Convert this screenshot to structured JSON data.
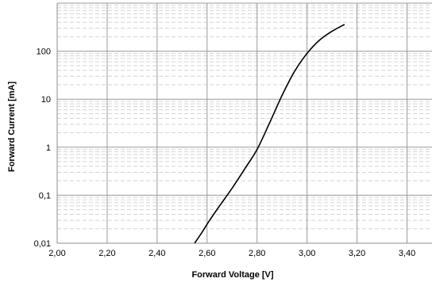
{
  "chart_data": {
    "type": "line",
    "title": "",
    "xlabel": "Forward Voltage [V]",
    "ylabel": "Forward Current [mA]",
    "x_scale": "linear",
    "y_scale": "log",
    "xlim": [
      2.0,
      3.5
    ],
    "ylim": [
      0.01,
      1000
    ],
    "x_ticks": [
      2.0,
      2.2,
      2.4,
      2.6,
      2.8,
      3.0,
      3.2,
      3.4
    ],
    "x_tick_labels": [
      "2,00",
      "2,20",
      "2,40",
      "2,60",
      "2,80",
      "3,00",
      "3,20",
      "3,40"
    ],
    "y_ticks": [
      0.01,
      0.1,
      1,
      10,
      100
    ],
    "y_tick_labels": [
      "0,01",
      "0,1",
      "1",
      "10",
      "100"
    ],
    "grid": true,
    "minor_grid": true,
    "legend": "none",
    "series": [
      {
        "color": "#000000",
        "x": [
          2.55,
          2.58,
          2.61,
          2.65,
          2.7,
          2.75,
          2.8,
          2.85,
          2.9,
          2.95,
          3.0,
          3.05,
          3.1,
          3.15
        ],
        "y": [
          0.01,
          0.017,
          0.03,
          0.06,
          0.14,
          0.35,
          0.9,
          3.2,
          12,
          38,
          90,
          170,
          260,
          360
        ]
      }
    ]
  }
}
